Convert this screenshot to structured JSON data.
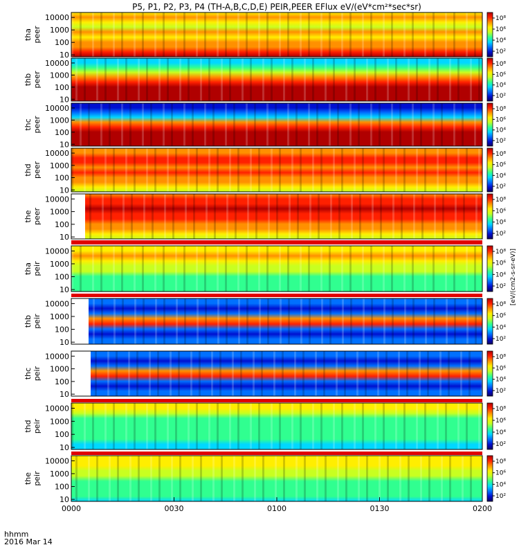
{
  "title": "P5, P1, P2, P3, P4 (TH-A,B,C,D,E) PEIR,PEER EFlux eV/(eV*cm²*sec*sr)",
  "time_axis": {
    "label_line1": "hhmm",
    "label_line2": "2016 Mar 14",
    "ticks": [
      "0000",
      "0030",
      "0100",
      "0130",
      "0200"
    ],
    "range_minutes": [
      0,
      120
    ]
  },
  "colors": {
    "palette": [
      "#100060",
      "#0010d0",
      "#0070ff",
      "#00d8ff",
      "#30ff90",
      "#c8ff20",
      "#ffee00",
      "#ff9000",
      "#ff2000",
      "#b00000"
    ]
  },
  "chart_data": {
    "type": "heatmap",
    "title": "P5, P1, P2, P3, P4 (TH-A,B,C,D,E) PEIR,PEER EFlux eV/(eV*cm²*sec*sr)",
    "x_axis": {
      "ticks": [
        "0000",
        "0030",
        "0100",
        "0130",
        "0200"
      ],
      "unit": "hhmm",
      "date": "2016 Mar 14"
    },
    "y_scale": "log",
    "y_ticks": [
      "10",
      "100",
      "1000",
      "10000"
    ],
    "colorbar_scale": "log",
    "colorbar_unit": "eV/(eV*cm²*s*sr)",
    "panels": [
      {
        "probe": "tha",
        "product": "peer",
        "colorbar_ticks": [
          "10²",
          "10⁴",
          "10⁶",
          "10⁸"
        ]
      },
      {
        "probe": "thb",
        "product": "peer",
        "colorbar_ticks": [
          "10²",
          "10⁴",
          "10⁶",
          "10⁸"
        ]
      },
      {
        "probe": "thc",
        "product": "peer",
        "colorbar_ticks": [
          "10²",
          "10⁴",
          "10⁶",
          "10⁸"
        ]
      },
      {
        "probe": "thd",
        "product": "peer",
        "colorbar_ticks": [
          "10²",
          "10⁴",
          "10⁶",
          "10⁸"
        ]
      },
      {
        "probe": "the",
        "product": "peer",
        "colorbar_ticks": [
          "10²",
          "10⁴",
          "10⁶",
          "10⁸"
        ]
      },
      {
        "probe": "tha",
        "product": "peir",
        "colorbar_ticks": [
          "10²",
          "10⁴",
          "10⁶",
          "10⁸"
        ]
      },
      {
        "probe": "thb",
        "product": "peir",
        "colorbar_ticks": [
          "10²",
          "10⁴",
          "10⁶",
          "10⁸"
        ]
      },
      {
        "probe": "thc",
        "product": "peir",
        "colorbar_ticks": [
          "10²",
          "10⁴",
          "10⁶",
          "10⁸"
        ]
      },
      {
        "probe": "thd",
        "product": "peir",
        "colorbar_ticks": [
          "10²",
          "10⁴",
          "10⁶",
          "10⁸"
        ]
      },
      {
        "probe": "the",
        "product": "peir",
        "colorbar_ticks": [
          "10²",
          "10⁴",
          "10⁶",
          "10⁸"
        ]
      }
    ]
  }
}
